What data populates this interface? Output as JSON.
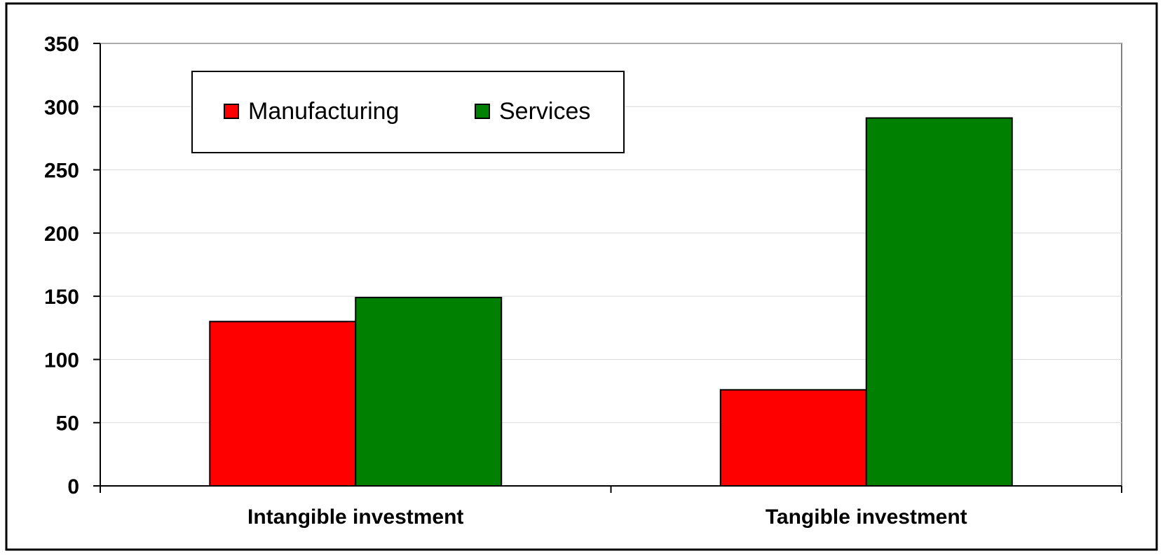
{
  "chart_data": {
    "type": "bar",
    "title": "",
    "xlabel": "",
    "ylabel": "",
    "categories": [
      "Intangible investment",
      "Tangible investment"
    ],
    "series": [
      {
        "name": "Manufacturing",
        "values": [
          130,
          76
        ],
        "color": "#ff0000"
      },
      {
        "name": "Services",
        "values": [
          149,
          291
        ],
        "color": "#008000"
      }
    ],
    "ylim": [
      0,
      350
    ],
    "yticks": [
      0,
      50,
      100,
      150,
      200,
      250,
      300,
      350
    ],
    "grid": true,
    "legend_position": "top-left"
  }
}
